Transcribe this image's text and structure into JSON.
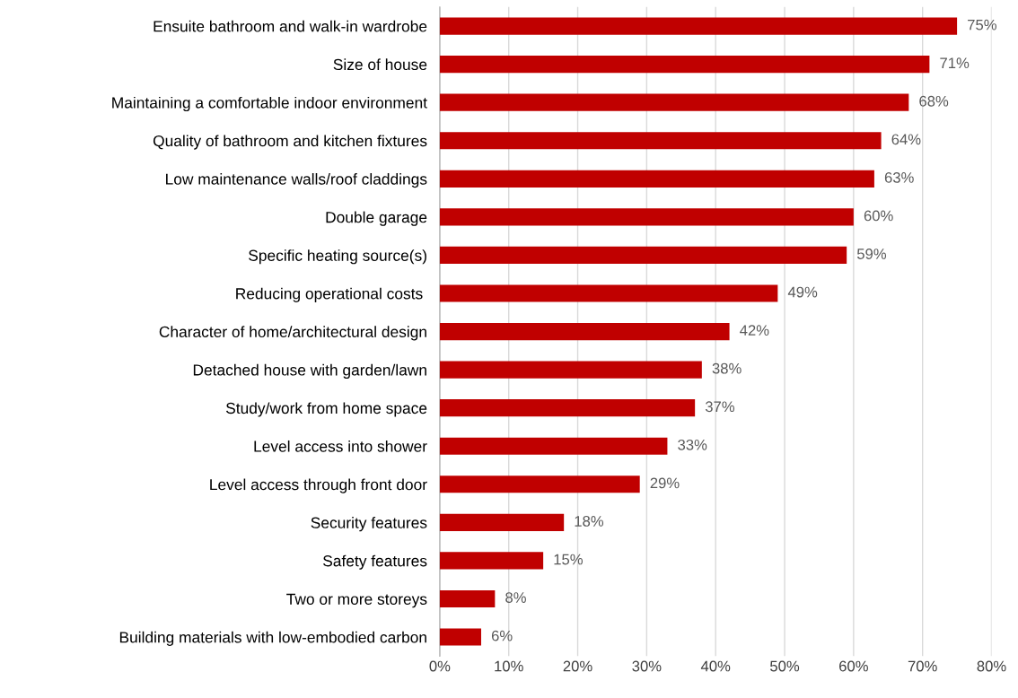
{
  "chart_data": {
    "type": "bar",
    "orientation": "horizontal",
    "categories": [
      "Ensuite bathroom and walk-in wardrobe",
      "Size of house",
      "Maintaining a comfortable indoor environment",
      "Quality of bathroom and kitchen fixtures",
      "Low maintenance walls/roof claddings",
      "Double garage",
      "Specific heating source(s)",
      "Reducing operational costs ",
      "Character of home/architectural design",
      "Detached house with garden/lawn",
      "Study/work from home space",
      "Level access into shower",
      "Level access through front door",
      "Security features",
      "Safety features",
      "Two or more storeys",
      "Building materials with low-embodied carbon"
    ],
    "values": [
      75,
      71,
      68,
      64,
      63,
      60,
      59,
      49,
      42,
      38,
      37,
      33,
      29,
      18,
      15,
      8,
      6
    ],
    "value_labels": [
      "75%",
      "71%",
      "68%",
      "64%",
      "63%",
      "60%",
      "59%",
      "49%",
      "42%",
      "38%",
      "37%",
      "33%",
      "29%",
      "18%",
      "15%",
      "8%",
      "6%"
    ],
    "color": "#c00000",
    "xlim": [
      0,
      80
    ],
    "xticks": [
      {
        "value": 0,
        "label": "0%"
      },
      {
        "value": 10,
        "label": "10%"
      },
      {
        "value": 20,
        "label": "20%"
      },
      {
        "value": 30,
        "label": "30%"
      },
      {
        "value": 40,
        "label": "40%"
      },
      {
        "value": 50,
        "label": "50%"
      },
      {
        "value": 60,
        "label": "60%"
      },
      {
        "value": 70,
        "label": "70%"
      },
      {
        "value": 80,
        "label": "80%"
      }
    ],
    "grid": "x",
    "legend": false
  }
}
